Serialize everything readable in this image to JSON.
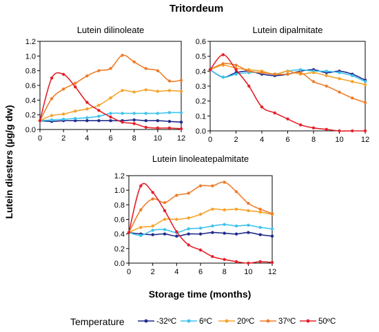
{
  "figure": {
    "title": "Tritordeum",
    "ylabel": "Lutein diesters (µg/g dw)",
    "xlabel": "Storage time (months)",
    "legend_title": "Temperature"
  },
  "legend": [
    {
      "label": "-32ºC",
      "color": "#1f2a8a",
      "marker": "circle"
    },
    {
      "label": "6ºC",
      "color": "#3ec3ee",
      "marker": "circle"
    },
    {
      "label": "20ºC",
      "color": "#f5a32a",
      "marker": "circle"
    },
    {
      "label": "37ºC",
      "color": "#ee7d2b",
      "marker": "circle"
    },
    {
      "label": "50ºC",
      "color": "#e4202a",
      "marker": "circle"
    }
  ],
  "chart_data": [
    {
      "type": "scatter",
      "title": "Lutein dilinoleate",
      "xlim": [
        0,
        12
      ],
      "ylim": [
        0,
        1.2
      ],
      "xticks": [
        "0",
        "2",
        "4",
        "6",
        "8",
        "10",
        "12"
      ],
      "yticks": [
        "0.0",
        "0.2",
        "0.4",
        "0.6",
        "0.8",
        "1.0",
        "1.2"
      ],
      "x": [
        0,
        1,
        2,
        3,
        4,
        5,
        6,
        7,
        8,
        9,
        10,
        11,
        12
      ],
      "series": [
        {
          "name": "-32ºC",
          "color": "#1f2a8a",
          "values": [
            0.12,
            0.11,
            0.12,
            0.12,
            0.12,
            0.12,
            0.12,
            0.12,
            0.13,
            0.12,
            0.12,
            0.11,
            0.1
          ]
        },
        {
          "name": "6ºC",
          "color": "#3ec3ee",
          "values": [
            0.12,
            0.13,
            0.14,
            0.15,
            0.16,
            0.18,
            0.22,
            0.22,
            0.22,
            0.22,
            0.22,
            0.23,
            0.23
          ]
        },
        {
          "name": "20ºC",
          "color": "#f5a32a",
          "values": [
            0.12,
            0.19,
            0.21,
            0.25,
            0.28,
            0.33,
            0.43,
            0.53,
            0.51,
            0.54,
            0.52,
            0.53,
            0.52
          ]
        },
        {
          "name": "37ºC",
          "color": "#ee7d2b",
          "values": [
            0.12,
            0.42,
            0.55,
            0.63,
            0.73,
            0.8,
            0.83,
            1.01,
            0.92,
            0.83,
            0.8,
            0.66,
            0.67
          ]
        },
        {
          "name": "50ºC",
          "color": "#e4202a",
          "values": [
            0.12,
            0.7,
            0.75,
            0.58,
            0.37,
            0.26,
            0.17,
            0.1,
            0.08,
            0.03,
            0.02,
            0.02,
            0.01
          ]
        }
      ]
    },
    {
      "type": "scatter",
      "title": "Lutein dipalmitate",
      "xlim": [
        0,
        12
      ],
      "ylim": [
        0,
        0.6
      ],
      "xticks": [
        "0",
        "2",
        "4",
        "6",
        "8",
        "10",
        "12"
      ],
      "yticks": [
        "0.0",
        "0.1",
        "0.2",
        "0.3",
        "0.4",
        "0.5",
        "0.6"
      ],
      "x": [
        0,
        1,
        2,
        3,
        4,
        5,
        6,
        7,
        8,
        9,
        10,
        11,
        12
      ],
      "series": [
        {
          "name": "-32ºC",
          "color": "#1f2a8a",
          "values": [
            0.41,
            0.36,
            0.39,
            0.4,
            0.38,
            0.37,
            0.38,
            0.4,
            0.41,
            0.39,
            0.4,
            0.38,
            0.34
          ]
        },
        {
          "name": "6ºC",
          "color": "#3ec3ee",
          "values": [
            0.41,
            0.36,
            0.38,
            0.39,
            0.39,
            0.38,
            0.4,
            0.41,
            0.4,
            0.4,
            0.39,
            0.37,
            0.33
          ]
        },
        {
          "name": "20ºC",
          "color": "#f5a32a",
          "values": [
            0.41,
            0.44,
            0.42,
            0.41,
            0.4,
            0.38,
            0.4,
            0.38,
            0.39,
            0.37,
            0.35,
            0.33,
            0.31
          ]
        },
        {
          "name": "37ºC",
          "color": "#ee7d2b",
          "values": [
            0.41,
            0.45,
            0.44,
            0.4,
            0.39,
            0.38,
            0.38,
            0.39,
            0.33,
            0.3,
            0.26,
            0.22,
            0.19
          ]
        },
        {
          "name": "50ºC",
          "color": "#e4202a",
          "values": [
            0.41,
            0.51,
            0.41,
            0.3,
            0.16,
            0.12,
            0.08,
            0.04,
            0.02,
            0.01,
            0.0,
            0.0,
            0.0
          ]
        }
      ]
    },
    {
      "type": "scatter",
      "title": "Lutein linoleatepalmitate",
      "xlim": [
        0,
        12
      ],
      "ylim": [
        0,
        1.2
      ],
      "xticks": [
        "0",
        "2",
        "4",
        "6",
        "8",
        "10",
        "12"
      ],
      "yticks": [
        "0.0",
        "0.2",
        "0.4",
        "0.6",
        "0.8",
        "1.0",
        "1.2"
      ],
      "x": [
        0,
        1,
        2,
        3,
        4,
        5,
        6,
        7,
        8,
        9,
        10,
        11,
        12
      ],
      "series": [
        {
          "name": "-32ºC",
          "color": "#1f2a8a",
          "values": [
            0.42,
            0.4,
            0.39,
            0.4,
            0.37,
            0.4,
            0.4,
            0.42,
            0.41,
            0.4,
            0.42,
            0.39,
            0.37
          ]
        },
        {
          "name": "6ºC",
          "color": "#3ec3ee",
          "values": [
            0.42,
            0.38,
            0.45,
            0.46,
            0.42,
            0.47,
            0.48,
            0.51,
            0.53,
            0.51,
            0.52,
            0.49,
            0.47
          ]
        },
        {
          "name": "20ºC",
          "color": "#f5a32a",
          "values": [
            0.42,
            0.49,
            0.51,
            0.6,
            0.6,
            0.62,
            0.67,
            0.74,
            0.73,
            0.74,
            0.72,
            0.7,
            0.67
          ]
        },
        {
          "name": "37ºC",
          "color": "#ee7d2b",
          "values": [
            0.42,
            0.73,
            0.88,
            0.83,
            0.93,
            0.96,
            1.06,
            1.06,
            1.11,
            0.98,
            0.82,
            0.74,
            0.68
          ]
        },
        {
          "name": "50ºC",
          "color": "#e4202a",
          "values": [
            0.42,
            1.06,
            0.97,
            0.72,
            0.43,
            0.25,
            0.18,
            0.09,
            0.05,
            0.02,
            0.0,
            0.02,
            0.01
          ]
        }
      ]
    }
  ]
}
